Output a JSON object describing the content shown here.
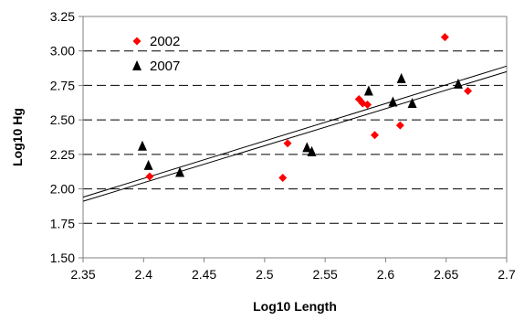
{
  "chart_data": {
    "type": "scatter",
    "xlabel": "Log10 Length",
    "ylabel": "Log10 Hg",
    "xlim": [
      2.35,
      2.7
    ],
    "ylim": [
      1.5,
      3.25
    ],
    "xticks": [
      "2.35",
      "2.4",
      "2.45",
      "2.5",
      "2.55",
      "2.6",
      "2.65",
      "2.7"
    ],
    "yticks": [
      "1.50",
      "1.75",
      "2.00",
      "2.25",
      "2.50",
      "2.75",
      "3.00",
      "3.25"
    ],
    "grid": "horizontal-dashed",
    "legend_position": "top-left",
    "series": [
      {
        "name": "2002",
        "marker": "diamond",
        "color": "#ff0000",
        "points": [
          [
            2.405,
            2.09
          ],
          [
            2.515,
            2.08
          ],
          [
            2.519,
            2.33
          ],
          [
            2.578,
            2.65
          ],
          [
            2.581,
            2.62
          ],
          [
            2.585,
            2.61
          ],
          [
            2.591,
            2.39
          ],
          [
            2.612,
            2.46
          ],
          [
            2.649,
            3.1
          ],
          [
            2.668,
            2.71
          ]
        ],
        "trend": {
          "x": [
            2.35,
            2.7
          ],
          "y": [
            1.91,
            2.85
          ]
        }
      },
      {
        "name": "2007",
        "marker": "triangle",
        "color": "#000000",
        "points": [
          [
            2.399,
            2.31
          ],
          [
            2.404,
            2.17
          ],
          [
            2.43,
            2.12
          ],
          [
            2.535,
            2.3
          ],
          [
            2.539,
            2.27
          ],
          [
            2.586,
            2.71
          ],
          [
            2.606,
            2.63
          ],
          [
            2.613,
            2.8
          ],
          [
            2.622,
            2.62
          ],
          [
            2.66,
            2.76
          ]
        ],
        "trend": {
          "x": [
            2.35,
            2.7
          ],
          "y": [
            1.94,
            2.89
          ]
        }
      }
    ]
  }
}
